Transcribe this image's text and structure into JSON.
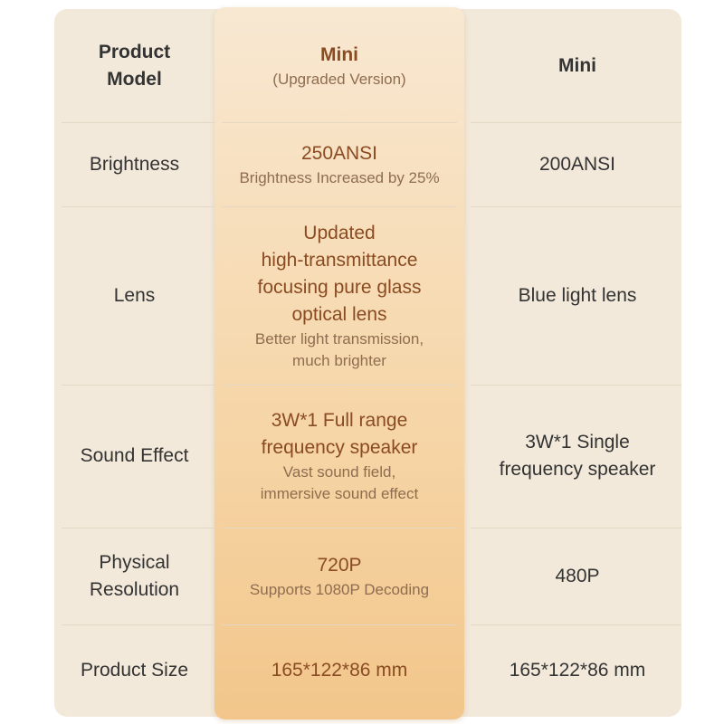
{
  "header": {
    "label": [
      "Product",
      "Model"
    ],
    "highlight": {
      "main": [
        "Mini"
      ],
      "note": [
        "(Upgraded Version)"
      ]
    },
    "standard": [
      "Mini"
    ]
  },
  "rows": [
    {
      "label": [
        "Brightness"
      ],
      "highlight": {
        "main": [
          "250ANSI"
        ],
        "note": [
          "Brightness Increased by 25%"
        ]
      },
      "standard": [
        "200ANSI"
      ]
    },
    {
      "label": [
        "Lens"
      ],
      "highlight": {
        "main": [
          "Updated",
          "high-transmittance",
          "focusing pure glass",
          "optical lens"
        ],
        "note": [
          "Better light transmission,",
          "much brighter"
        ]
      },
      "standard": [
        "Blue light lens"
      ]
    },
    {
      "label": [
        "Sound Effect"
      ],
      "highlight": {
        "main": [
          "3W*1 Full range",
          "frequency speaker"
        ],
        "note": [
          "Vast sound field,",
          "immersive sound effect"
        ]
      },
      "standard": [
        "3W*1 Single",
        "frequency speaker"
      ]
    },
    {
      "label": [
        "Physical",
        "Resolution"
      ],
      "highlight": {
        "main": [
          "720P"
        ],
        "note": [
          "Supports 1080P Decoding"
        ]
      },
      "standard": [
        "480P"
      ]
    },
    {
      "label": [
        "Product Size"
      ],
      "highlight": {
        "main": [
          "165*122*86 mm"
        ],
        "note": []
      },
      "standard": [
        "165*122*86 mm"
      ]
    }
  ]
}
